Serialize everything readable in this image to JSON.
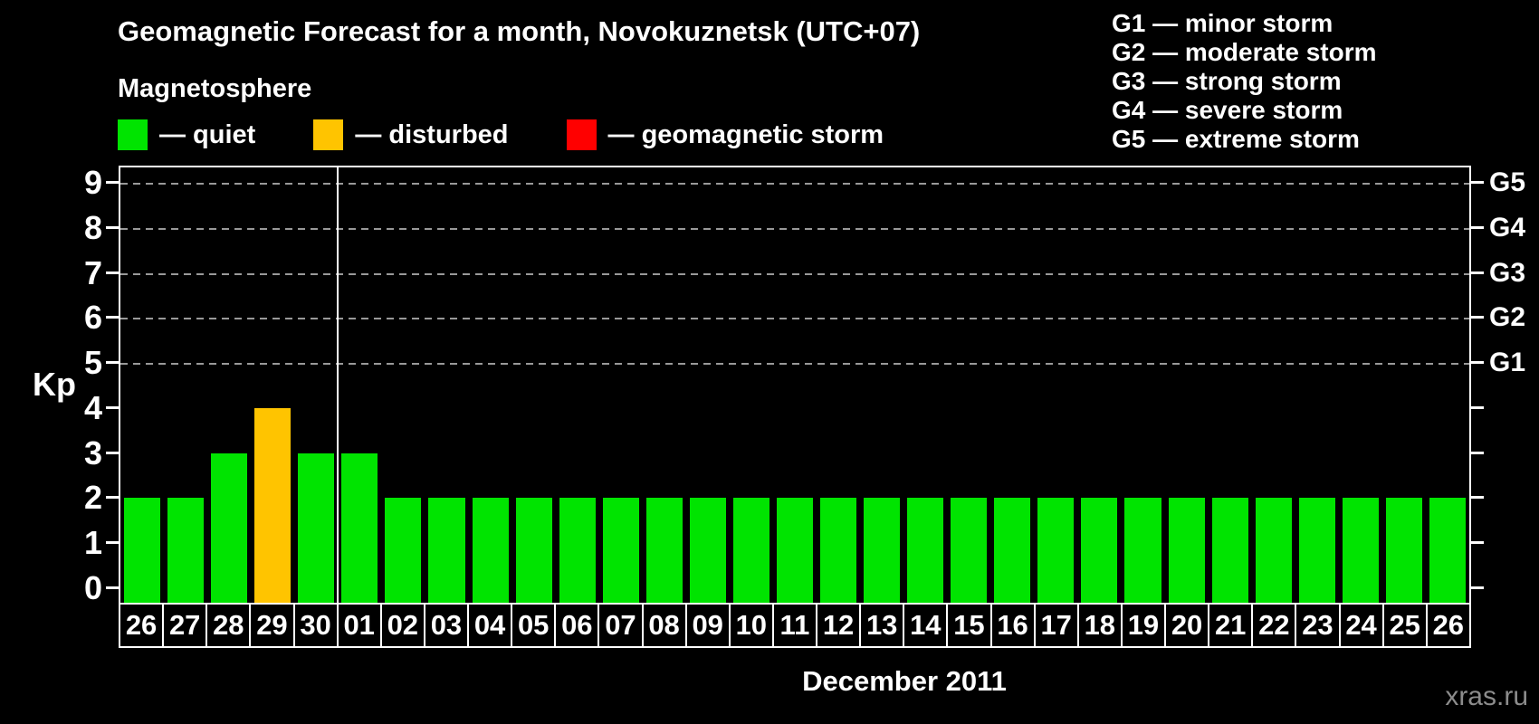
{
  "title": "Geomagnetic Forecast for a month, Novokuznetsk (UTC+07)",
  "subtitle": "Magnetosphere",
  "legend": {
    "items": [
      {
        "name": "quiet",
        "label": "— quiet",
        "color": "#00e400"
      },
      {
        "name": "disturbed",
        "label": "— disturbed",
        "color": "#ffc400"
      },
      {
        "name": "geomagnetic-storm",
        "label": "— geomagnetic storm",
        "color": "#ff0000"
      }
    ]
  },
  "g_scale_legend": [
    "G1 — minor storm",
    "G2 — moderate storm",
    "G3 — strong storm",
    "G4 — severe storm",
    "G5 — extreme storm"
  ],
  "y_axis": {
    "label": "Kp",
    "ticks": [
      0,
      1,
      2,
      3,
      4,
      5,
      6,
      7,
      8,
      9
    ]
  },
  "right_axis": {
    "labels": [
      {
        "kp": 5,
        "label": "G1"
      },
      {
        "kp": 6,
        "label": "G2"
      },
      {
        "kp": 7,
        "label": "G3"
      },
      {
        "kp": 8,
        "label": "G4"
      },
      {
        "kp": 9,
        "label": "G5"
      }
    ]
  },
  "x_axis": {
    "month_label": "December 2011"
  },
  "watermark": "xras.ru",
  "chart_data": {
    "type": "bar",
    "title": "Geomagnetic Forecast for a month, Novokuznetsk (UTC+07)",
    "ylabel": "Kp",
    "xlabel": "December 2011",
    "ylim": [
      0,
      9
    ],
    "gridlines_at": [
      5,
      6,
      7,
      8,
      9
    ],
    "legend_position": "top-left",
    "categories": [
      "26",
      "27",
      "28",
      "29",
      "30",
      "01",
      "02",
      "03",
      "04",
      "05",
      "06",
      "07",
      "08",
      "09",
      "10",
      "11",
      "12",
      "13",
      "14",
      "15",
      "16",
      "17",
      "18",
      "19",
      "20",
      "21",
      "22",
      "23",
      "24",
      "25",
      "26"
    ],
    "values": [
      2,
      2,
      3,
      4,
      3,
      3,
      2,
      2,
      2,
      2,
      2,
      2,
      2,
      2,
      2,
      2,
      2,
      2,
      2,
      2,
      2,
      2,
      2,
      2,
      2,
      2,
      2,
      2,
      2,
      2,
      2
    ],
    "statuses": [
      "quiet",
      "quiet",
      "quiet",
      "disturbed",
      "quiet",
      "quiet",
      "quiet",
      "quiet",
      "quiet",
      "quiet",
      "quiet",
      "quiet",
      "quiet",
      "quiet",
      "quiet",
      "quiet",
      "quiet",
      "quiet",
      "quiet",
      "quiet",
      "quiet",
      "quiet",
      "quiet",
      "quiet",
      "quiet",
      "quiet",
      "quiet",
      "quiet",
      "quiet",
      "quiet",
      "quiet"
    ],
    "colors": {
      "quiet": "#00e400",
      "disturbed": "#ffc400",
      "geomagnetic-storm": "#ff0000"
    },
    "month_boundary_after_index": 4
  }
}
